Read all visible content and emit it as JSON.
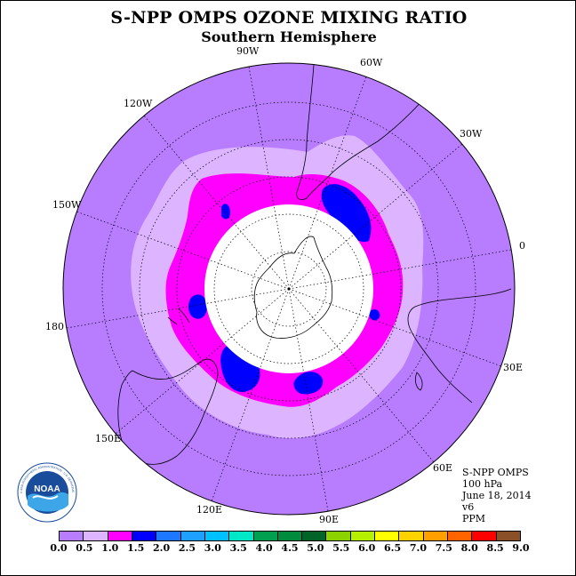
{
  "title": "S-NPP OMPS OZONE MIXING RATIO",
  "subtitle": "Southern Hemisphere",
  "longitude_labels": [
    {
      "label": "90W",
      "key": "lon-90w"
    },
    {
      "label": "60W",
      "key": "lon-60w"
    },
    {
      "label": "120W",
      "key": "lon-120w"
    },
    {
      "label": "30W",
      "key": "lon-30w"
    },
    {
      "label": "150W",
      "key": "lon-150w"
    },
    {
      "label": "0",
      "key": "lon-0"
    },
    {
      "label": "180",
      "key": "lon-180"
    },
    {
      "label": "30E",
      "key": "lon-30e"
    },
    {
      "label": "150E",
      "key": "lon-150e"
    },
    {
      "label": "60E",
      "key": "lon-60e"
    },
    {
      "label": "120E",
      "key": "lon-120e"
    },
    {
      "label": "90E",
      "key": "lon-90e"
    }
  ],
  "info": {
    "instrument": "S-NPP OMPS",
    "level": "100 hPa",
    "date": "June 18, 2014",
    "version": "v6",
    "units": "PPM"
  },
  "logo": {
    "text": "NOAA",
    "ring_text": "NATIONAL OCEANIC AND ATMOSPHERIC ADMINISTRATION · U.S. DEPARTMENT OF COMMERCE",
    "color": "#1a4c9c"
  },
  "colorbar": {
    "ticks": [
      "0.0",
      "0.5",
      "1.0",
      "1.5",
      "2.0",
      "2.5",
      "3.0",
      "3.5",
      "4.0",
      "4.5",
      "5.0",
      "5.5",
      "6.0",
      "6.5",
      "7.0",
      "7.5",
      "8.0",
      "8.5",
      "9.0"
    ],
    "colors": [
      "#b87cff",
      "#dcb4ff",
      "#ff00ff",
      "#0000ff",
      "#1e78ff",
      "#1ea0ff",
      "#00c0ff",
      "#00e8c8",
      "#00a050",
      "#008c3c",
      "#006428",
      "#8cd200",
      "#b4f000",
      "#ffff00",
      "#ffd200",
      "#ffa000",
      "#ff6400",
      "#ff0000",
      "#8c5028"
    ]
  },
  "map_colors": {
    "level_0_0_5": "#b87cff",
    "level_0_5_1_0": "#dcb4ff",
    "level_1_0_1_5": "#ff00ff",
    "level_1_5_2_0": "#0000ff",
    "no_data": "#ffffff"
  }
}
